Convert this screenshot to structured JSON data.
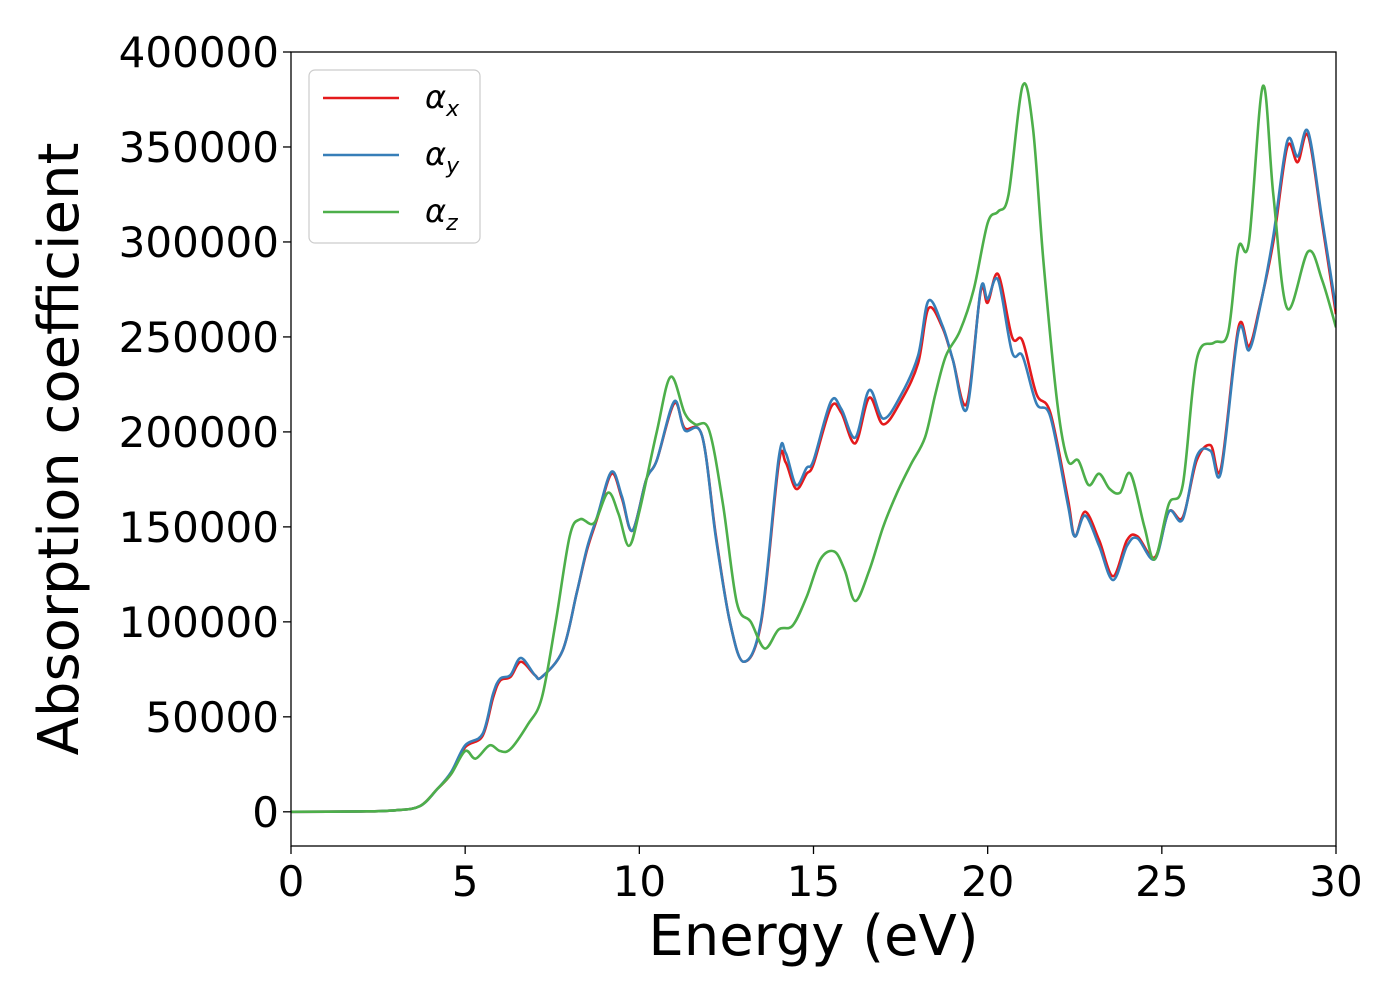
{
  "chart_data": {
    "type": "line",
    "title": "",
    "xlabel": "Energy (eV)",
    "ylabel": "Absorption coefficient",
    "xlim": [
      0,
      30
    ],
    "ylim": [
      -18000,
      400000
    ],
    "xticks": [
      0,
      5,
      10,
      15,
      20,
      25,
      30
    ],
    "yticks": [
      0,
      50000,
      100000,
      150000,
      200000,
      250000,
      300000,
      350000,
      400000
    ],
    "grid": false,
    "legend_position": "top-left",
    "series": [
      {
        "name": "αx",
        "symbol": "α",
        "subscript": "x",
        "color": "#e41a1c",
        "points": [
          [
            0,
            0
          ],
          [
            2,
            200
          ],
          [
            3,
            800
          ],
          [
            3.7,
            3000
          ],
          [
            4.2,
            12000
          ],
          [
            4.6,
            20000
          ],
          [
            5,
            34000
          ],
          [
            5.5,
            40000
          ],
          [
            5.8,
            60000
          ],
          [
            6,
            69000
          ],
          [
            6.3,
            71000
          ],
          [
            6.6,
            79000
          ],
          [
            7,
            72000
          ],
          [
            7.2,
            71000
          ],
          [
            7.8,
            85000
          ],
          [
            8.2,
            115000
          ],
          [
            8.5,
            138000
          ],
          [
            8.8,
            155000
          ],
          [
            9.2,
            178000
          ],
          [
            9.5,
            165000
          ],
          [
            9.8,
            148000
          ],
          [
            10.2,
            175000
          ],
          [
            10.5,
            185000
          ],
          [
            11,
            215000
          ],
          [
            11.3,
            202000
          ],
          [
            11.8,
            198000
          ],
          [
            12.2,
            145000
          ],
          [
            12.6,
            100000
          ],
          [
            13,
            79000
          ],
          [
            13.5,
            100000
          ],
          [
            14,
            183000
          ],
          [
            14.2,
            184000
          ],
          [
            14.5,
            170000
          ],
          [
            14.8,
            178000
          ],
          [
            15,
            183000
          ],
          [
            15.5,
            213000
          ],
          [
            15.8,
            210000
          ],
          [
            16.2,
            194000
          ],
          [
            16.6,
            218000
          ],
          [
            17,
            204000
          ],
          [
            17.5,
            216000
          ],
          [
            18,
            236000
          ],
          [
            18.3,
            265000
          ],
          [
            18.7,
            255000
          ],
          [
            19,
            238000
          ],
          [
            19.4,
            215000
          ],
          [
            19.8,
            274000
          ],
          [
            20,
            268000
          ],
          [
            20.3,
            283000
          ],
          [
            20.7,
            250000
          ],
          [
            21,
            248000
          ],
          [
            21.4,
            220000
          ],
          [
            21.8,
            210000
          ],
          [
            22.3,
            165000
          ],
          [
            22.5,
            145000
          ],
          [
            22.8,
            158000
          ],
          [
            23.2,
            143000
          ],
          [
            23.6,
            124000
          ],
          [
            24,
            143000
          ],
          [
            24.3,
            145000
          ],
          [
            24.8,
            134000
          ],
          [
            25.2,
            158000
          ],
          [
            25.6,
            155000
          ],
          [
            26,
            185000
          ],
          [
            26.4,
            193000
          ],
          [
            26.7,
            181000
          ],
          [
            27.2,
            255000
          ],
          [
            27.5,
            245000
          ],
          [
            27.8,
            265000
          ],
          [
            28.2,
            300000
          ],
          [
            28.6,
            350000
          ],
          [
            28.9,
            342000
          ],
          [
            29.2,
            356000
          ],
          [
            29.6,
            310000
          ],
          [
            30,
            262000
          ]
        ]
      },
      {
        "name": "αy",
        "symbol": "α",
        "subscript": "y",
        "color": "#377eb8",
        "points": [
          [
            0,
            0
          ],
          [
            2,
            200
          ],
          [
            3,
            800
          ],
          [
            3.7,
            3000
          ],
          [
            4.2,
            12000
          ],
          [
            4.6,
            21000
          ],
          [
            5,
            35000
          ],
          [
            5.5,
            41000
          ],
          [
            5.8,
            62000
          ],
          [
            6,
            70000
          ],
          [
            6.3,
            72000
          ],
          [
            6.6,
            81000
          ],
          [
            7,
            72000
          ],
          [
            7.2,
            71000
          ],
          [
            7.8,
            85000
          ],
          [
            8.2,
            115000
          ],
          [
            8.5,
            139000
          ],
          [
            8.8,
            156000
          ],
          [
            9.2,
            179000
          ],
          [
            9.5,
            166000
          ],
          [
            9.8,
            148000
          ],
          [
            10.2,
            175000
          ],
          [
            10.5,
            185000
          ],
          [
            11,
            216000
          ],
          [
            11.3,
            201000
          ],
          [
            11.8,
            198000
          ],
          [
            12.2,
            144000
          ],
          [
            12.6,
            100000
          ],
          [
            13,
            79000
          ],
          [
            13.5,
            101000
          ],
          [
            14,
            186000
          ],
          [
            14.2,
            189000
          ],
          [
            14.5,
            172000
          ],
          [
            14.8,
            181000
          ],
          [
            15,
            185000
          ],
          [
            15.5,
            216000
          ],
          [
            15.8,
            212000
          ],
          [
            16.2,
            197000
          ],
          [
            16.6,
            222000
          ],
          [
            17,
            207000
          ],
          [
            17.5,
            219000
          ],
          [
            18,
            240000
          ],
          [
            18.3,
            269000
          ],
          [
            18.7,
            256000
          ],
          [
            19,
            238000
          ],
          [
            19.4,
            212000
          ],
          [
            19.8,
            275000
          ],
          [
            20,
            270000
          ],
          [
            20.3,
            280000
          ],
          [
            20.7,
            242000
          ],
          [
            21,
            240000
          ],
          [
            21.4,
            215000
          ],
          [
            21.8,
            208000
          ],
          [
            22.3,
            162000
          ],
          [
            22.5,
            145000
          ],
          [
            22.8,
            156000
          ],
          [
            23.2,
            140000
          ],
          [
            23.6,
            122000
          ],
          [
            24,
            140000
          ],
          [
            24.3,
            144000
          ],
          [
            24.8,
            133000
          ],
          [
            25.2,
            158000
          ],
          [
            25.6,
            154000
          ],
          [
            26,
            187000
          ],
          [
            26.4,
            190000
          ],
          [
            26.7,
            179000
          ],
          [
            27.2,
            253000
          ],
          [
            27.5,
            243000
          ],
          [
            27.8,
            264000
          ],
          [
            28.2,
            303000
          ],
          [
            28.6,
            353000
          ],
          [
            28.9,
            345000
          ],
          [
            29.2,
            358000
          ],
          [
            29.6,
            312000
          ],
          [
            30,
            265000
          ]
        ]
      },
      {
        "name": "αz",
        "symbol": "α",
        "subscript": "z",
        "color": "#4daf4a",
        "points": [
          [
            0,
            0
          ],
          [
            2,
            200
          ],
          [
            3,
            800
          ],
          [
            3.7,
            3000
          ],
          [
            4.2,
            12000
          ],
          [
            4.6,
            20000
          ],
          [
            5,
            32000
          ],
          [
            5.3,
            28000
          ],
          [
            5.7,
            35000
          ],
          [
            6,
            32000
          ],
          [
            6.3,
            33000
          ],
          [
            6.8,
            46000
          ],
          [
            7.2,
            60000
          ],
          [
            7.6,
            100000
          ],
          [
            8,
            145000
          ],
          [
            8.3,
            154000
          ],
          [
            8.7,
            152000
          ],
          [
            9.1,
            168000
          ],
          [
            9.4,
            157000
          ],
          [
            9.7,
            140000
          ],
          [
            10,
            158000
          ],
          [
            10.5,
            200000
          ],
          [
            10.9,
            229000
          ],
          [
            11.3,
            210000
          ],
          [
            11.6,
            204000
          ],
          [
            12,
            201000
          ],
          [
            12.4,
            162000
          ],
          [
            12.8,
            110000
          ],
          [
            13.2,
            100000
          ],
          [
            13.6,
            86000
          ],
          [
            14,
            96000
          ],
          [
            14.4,
            98000
          ],
          [
            14.8,
            113000
          ],
          [
            15.2,
            133000
          ],
          [
            15.6,
            137000
          ],
          [
            15.9,
            127000
          ],
          [
            16.2,
            111000
          ],
          [
            16.6,
            127000
          ],
          [
            17,
            150000
          ],
          [
            17.4,
            168000
          ],
          [
            17.8,
            183000
          ],
          [
            18.2,
            197000
          ],
          [
            18.5,
            220000
          ],
          [
            18.8,
            240000
          ],
          [
            19.2,
            253000
          ],
          [
            19.6,
            275000
          ],
          [
            20,
            310000
          ],
          [
            20.3,
            316000
          ],
          [
            20.6,
            325000
          ],
          [
            21,
            382000
          ],
          [
            21.3,
            360000
          ],
          [
            21.6,
            290000
          ],
          [
            22,
            215000
          ],
          [
            22.3,
            185000
          ],
          [
            22.6,
            185000
          ],
          [
            22.9,
            172000
          ],
          [
            23.2,
            178000
          ],
          [
            23.5,
            170000
          ],
          [
            23.8,
            168000
          ],
          [
            24.1,
            178000
          ],
          [
            24.5,
            150000
          ],
          [
            24.8,
            133000
          ],
          [
            25.2,
            162000
          ],
          [
            25.6,
            172000
          ],
          [
            26,
            238000
          ],
          [
            26.5,
            247000
          ],
          [
            26.9,
            252000
          ],
          [
            27.2,
            297000
          ],
          [
            27.5,
            300000
          ],
          [
            27.9,
            382000
          ],
          [
            28.2,
            325000
          ],
          [
            28.6,
            265000
          ],
          [
            29.2,
            295000
          ],
          [
            29.6,
            280000
          ],
          [
            30,
            255000
          ]
        ]
      }
    ]
  }
}
